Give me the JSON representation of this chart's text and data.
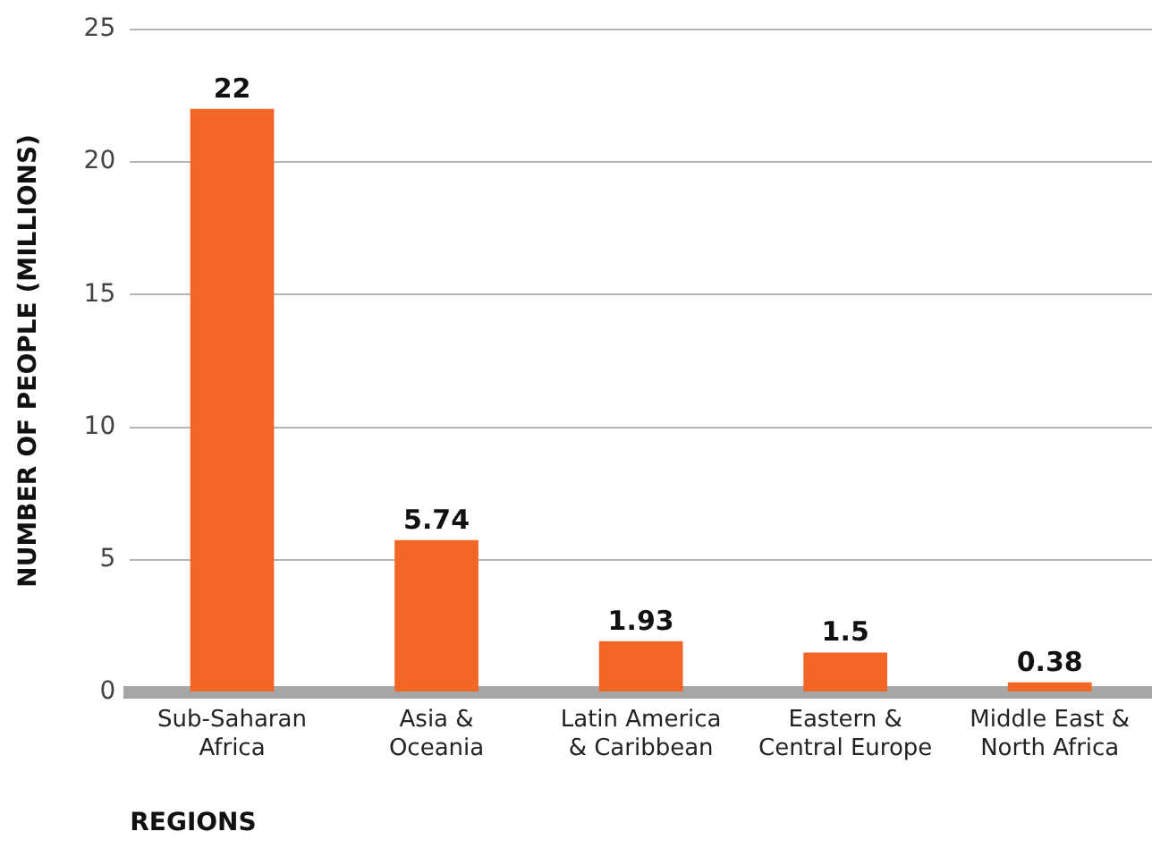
{
  "chart_data": {
    "type": "bar",
    "categories": [
      "Sub-Saharan\nAfrica",
      "Asia &\nOceania",
      "Latin America\n& Caribbean",
      "Eastern &\nCentral Europe",
      "Middle East &\nNorth Africa"
    ],
    "values": [
      22,
      5.74,
      1.93,
      1.5,
      0.38
    ],
    "color": "#f26725",
    "xlabel": "REGIONS",
    "ylabel": "NUMBER OF PEOPLE (MILLIONS)",
    "ylim": [
      0,
      25
    ],
    "yticks": [
      0,
      5,
      10,
      15,
      20,
      25
    ],
    "grid": "y",
    "data_labels": true,
    "legend": false
  }
}
